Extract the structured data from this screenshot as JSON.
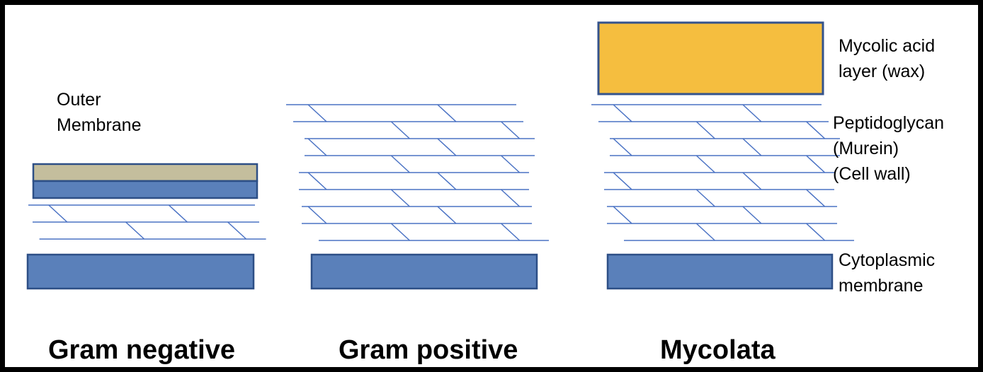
{
  "colors": {
    "frame": "#000000",
    "membrane_blue": "#5a80ba",
    "membrane_stroke": "#2d4f86",
    "outer_tan": "#c4be9d",
    "wax_yellow": "#f5be3f",
    "wax_stroke": "#34538c",
    "peptidoglycan_line": "#4a72c4"
  },
  "labels": {
    "outer_membrane_1": "Outer",
    "outer_membrane_2": "Membrane",
    "mycolic_1": "Mycolic acid",
    "mycolic_2": "layer (wax)",
    "peptidoglycan": "Peptidoglycan",
    "murein": "(Murein)",
    "cell_wall": "(Cell wall)",
    "cytoplasmic_1": "Cytoplasmic",
    "cytoplasmic_2": "membrane"
  },
  "captions": {
    "gram_negative": "Gram negative",
    "gram_positive": "Gram positive",
    "mycolata": "Mycolata"
  }
}
